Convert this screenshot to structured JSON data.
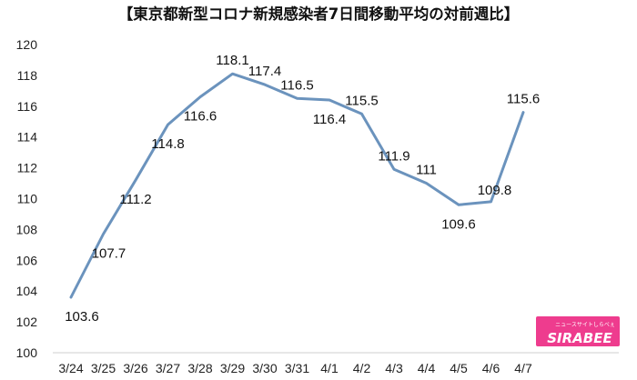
{
  "chart_data": {
    "type": "line",
    "title": "【東京都新型コロナ新規感染者7日間移動平均の対前週比】",
    "categories": [
      "3/24",
      "3/25",
      "3/26",
      "3/27",
      "3/28",
      "3/29",
      "3/30",
      "3/31",
      "4/1",
      "4/2",
      "4/3",
      "4/4",
      "4/5",
      "4/6",
      "4/7"
    ],
    "values": [
      103.6,
      107.7,
      111.2,
      114.8,
      116.6,
      118.1,
      117.4,
      116.5,
      116.4,
      115.5,
      111.9,
      111,
      109.6,
      109.8,
      115.6
    ],
    "data_labels": [
      "103.6",
      "107.7",
      "111.2",
      "114.8",
      "116.6",
      "118.1",
      "117.4",
      "116.5",
      "116.4",
      "115.5",
      "111.9",
      "111",
      "109.6",
      "109.8",
      "115.6"
    ],
    "y_ticks": [
      100,
      102,
      104,
      106,
      108,
      110,
      112,
      114,
      116,
      118,
      120
    ],
    "ylim": [
      100,
      120
    ],
    "xlabel": "",
    "ylabel": "",
    "grid": false,
    "line_color": "#6b93bd"
  },
  "logo": {
    "tagline": "ニュースサイトしらべぇ",
    "name": "SIRABEE",
    "color": "#ee3c8e"
  }
}
